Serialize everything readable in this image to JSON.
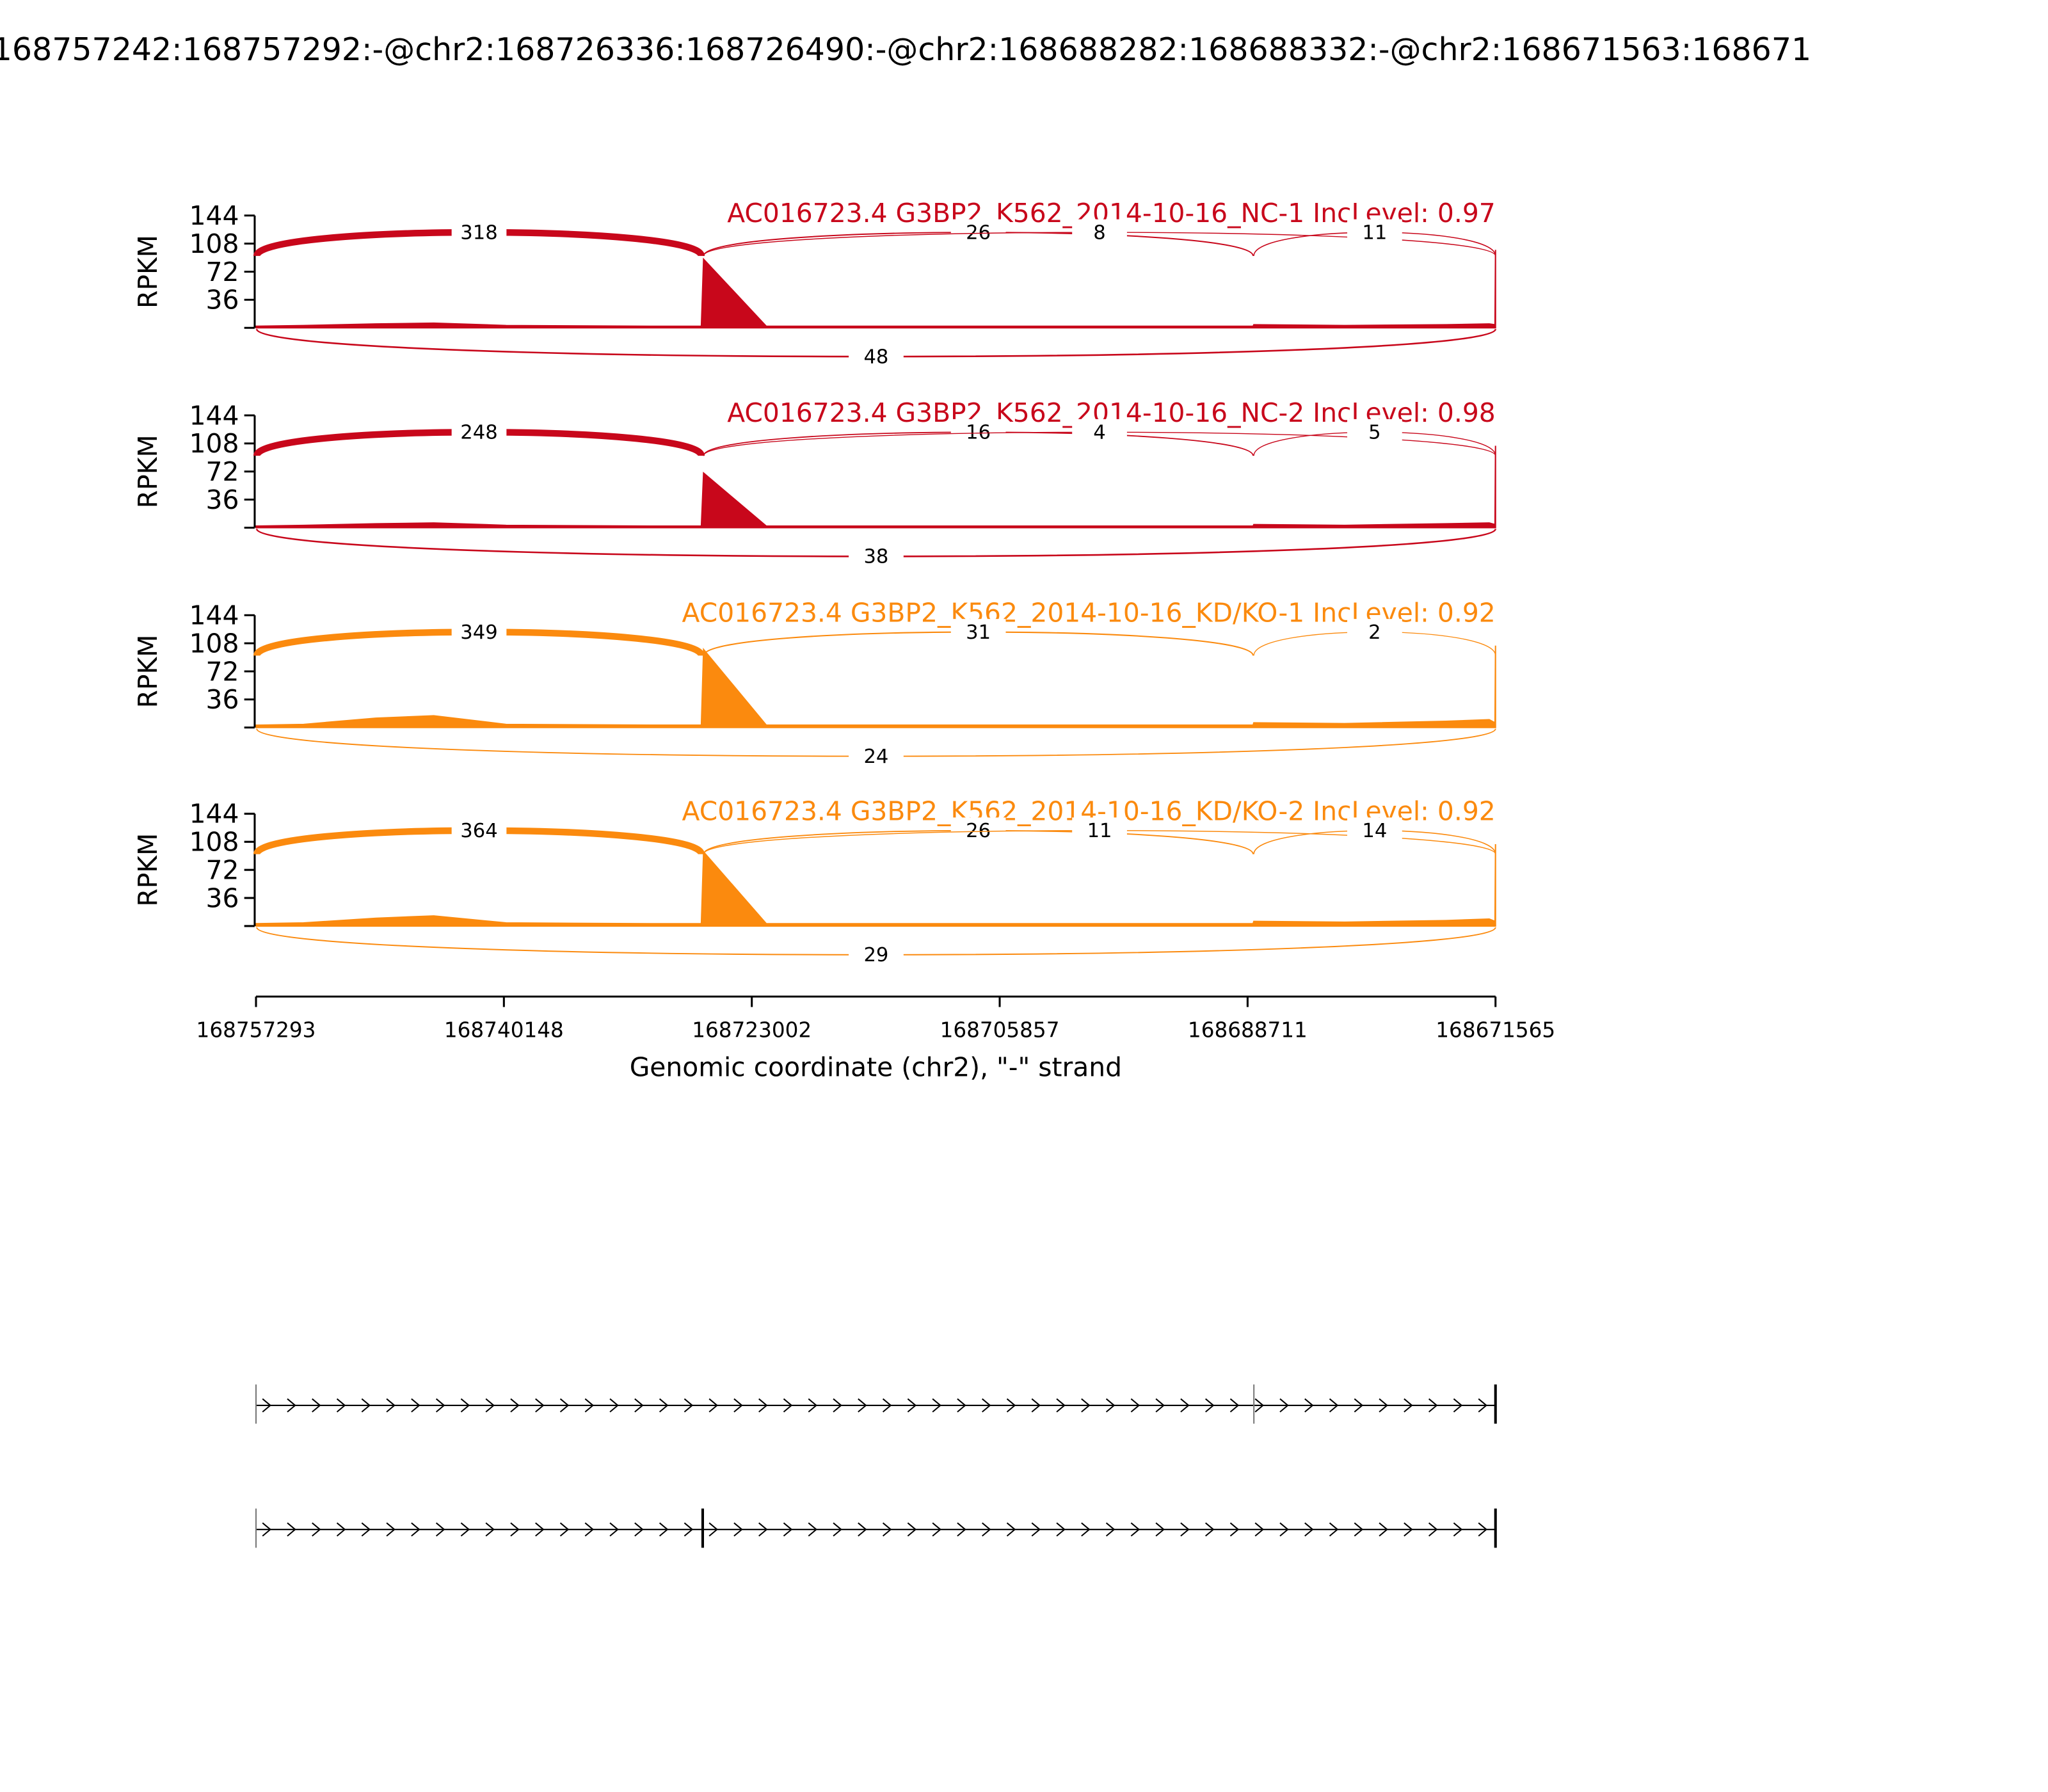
{
  "title": "168757242:168757292:-@chr2:168726336:168726490:-@chr2:168688282:168688332:-@chr2:168671563:168671",
  "chart_data": [
    {
      "type": "sashimi",
      "title": "AC016723.4 G3BP2_K562_2014-10-16_NC-1 IncLevel: 0.97",
      "color": "#c8071b",
      "ylabel": "RPKM",
      "ylim": [
        0,
        144
      ],
      "yticks": [
        36,
        72,
        108,
        144
      ],
      "xlim": [
        168757293,
        168671565
      ],
      "coverage": {
        "x": [
          168757293,
          168754000,
          168749000,
          168745000,
          168740000,
          168730000,
          168726490,
          168726336,
          168722000,
          168710000,
          168700000,
          168688332,
          168688282,
          168682000,
          168675000,
          168672000,
          168671600,
          168671565
        ],
        "values": [
          2,
          3,
          5,
          6,
          3,
          2,
          2,
          88,
          2,
          2,
          2,
          2,
          4,
          3,
          4,
          5,
          4,
          100
        ]
      },
      "junctions": [
        {
          "start": 168757242,
          "end": 168726490,
          "value": 318,
          "side": "above"
        },
        {
          "start": 168726336,
          "end": 168688332,
          "value": 26,
          "side": "above"
        },
        {
          "start": 168726336,
          "end": 168671565,
          "value": 8,
          "side": "above"
        },
        {
          "start": 168688282,
          "end": 168671565,
          "value": 11,
          "side": "above"
        },
        {
          "start": 168757242,
          "end": 168671565,
          "value": 48,
          "side": "below"
        }
      ]
    },
    {
      "type": "sashimi",
      "title": "AC016723.4 G3BP2_K562_2014-10-16_NC-2 IncLevel: 0.98",
      "color": "#c8071b",
      "ylabel": "RPKM",
      "ylim": [
        0,
        144
      ],
      "yticks": [
        36,
        72,
        108,
        144
      ],
      "xlim": [
        168757293,
        168671565
      ],
      "coverage": {
        "x": [
          168757293,
          168754000,
          168749000,
          168745000,
          168740000,
          168730000,
          168726490,
          168726336,
          168722000,
          168710000,
          168700000,
          168688332,
          168688282,
          168682000,
          168675000,
          168672000,
          168671600,
          168671565
        ],
        "values": [
          2,
          3,
          5,
          6,
          3,
          2,
          2,
          70,
          2,
          2,
          2,
          2,
          4,
          3,
          5,
          6,
          4,
          105
        ]
      },
      "junctions": [
        {
          "start": 168757242,
          "end": 168726490,
          "value": 248,
          "side": "above"
        },
        {
          "start": 168726336,
          "end": 168688332,
          "value": 16,
          "side": "above"
        },
        {
          "start": 168726336,
          "end": 168671565,
          "value": 4,
          "side": "above"
        },
        {
          "start": 168688282,
          "end": 168671565,
          "value": 5,
          "side": "above"
        },
        {
          "start": 168757242,
          "end": 168671565,
          "value": 38,
          "side": "below"
        }
      ]
    },
    {
      "type": "sashimi",
      "title": "AC016723.4 G3BP2_K562_2014-10-16_KD/KO-1 IncLevel: 0.92",
      "color": "#fb8a0e",
      "ylabel": "RPKM",
      "ylim": [
        0,
        144
      ],
      "yticks": [
        36,
        72,
        108,
        144
      ],
      "xlim": [
        168757293,
        168671565
      ],
      "coverage": {
        "x": [
          168757293,
          168754000,
          168749000,
          168745000,
          168740000,
          168730000,
          168726490,
          168726336,
          168722000,
          168710000,
          168700000,
          168688332,
          168688282,
          168682000,
          168675000,
          168672000,
          168671600,
          168671565
        ],
        "values": [
          3,
          4,
          12,
          15,
          4,
          3,
          3,
          100,
          3,
          3,
          3,
          3,
          6,
          5,
          8,
          10,
          6,
          105
        ]
      },
      "junctions": [
        {
          "start": 168757242,
          "end": 168726490,
          "value": 349,
          "side": "above"
        },
        {
          "start": 168726336,
          "end": 168688332,
          "value": 31,
          "side": "above"
        },
        {
          "start": 168688282,
          "end": 168671565,
          "value": 2,
          "side": "above"
        },
        {
          "start": 168757242,
          "end": 168671565,
          "value": 24,
          "side": "below"
        }
      ]
    },
    {
      "type": "sashimi",
      "title": "AC016723.4 G3BP2_K562_2014-10-16_KD/KO-2 IncLevel: 0.92",
      "color": "#fb8a0e",
      "ylabel": "RPKM",
      "ylim": [
        0,
        144
      ],
      "yticks": [
        36,
        72,
        108,
        144
      ],
      "xlim": [
        168757293,
        168671565
      ],
      "xticks": [
        168757293,
        168740148,
        168723002,
        168705857,
        168688711,
        168671565
      ],
      "xlabel": "Genomic coordinate (chr2), \"-\" strand",
      "coverage": {
        "x": [
          168757293,
          168754000,
          168749000,
          168745000,
          168740000,
          168730000,
          168726490,
          168726336,
          168722000,
          168710000,
          168700000,
          168688332,
          168688282,
          168682000,
          168675000,
          168672000,
          168671600,
          168671565
        ],
        "values": [
          3,
          4,
          10,
          13,
          4,
          3,
          3,
          95,
          3,
          3,
          3,
          3,
          6,
          5,
          7,
          9,
          6,
          105
        ]
      },
      "junctions": [
        {
          "start": 168757242,
          "end": 168726490,
          "value": 364,
          "side": "above"
        },
        {
          "start": 168726336,
          "end": 168688332,
          "value": 26,
          "side": "above"
        },
        {
          "start": 168726336,
          "end": 168671565,
          "value": 11,
          "side": "above"
        },
        {
          "start": 168688282,
          "end": 168671565,
          "value": 14,
          "side": "above"
        },
        {
          "start": 168757242,
          "end": 168671565,
          "value": 29,
          "side": "below"
        }
      ]
    }
  ]
}
